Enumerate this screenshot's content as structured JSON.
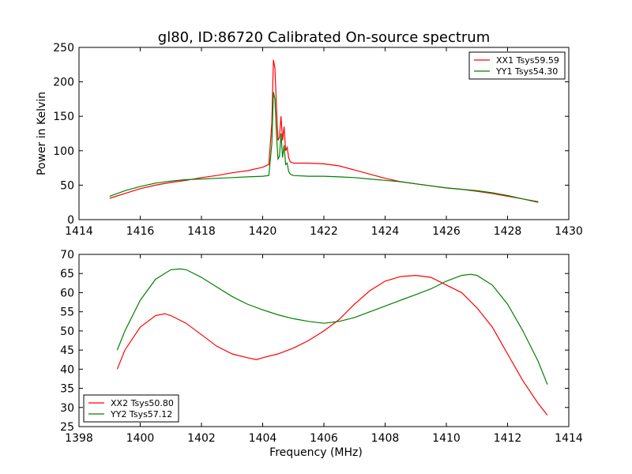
{
  "title": "gl80, ID:86720 Calibrated On-source spectrum",
  "chart_data": [
    {
      "type": "line",
      "title": "gl80, ID:86720 Calibrated On-source spectrum",
      "xlabel": "",
      "ylabel": "Power in Kelvin",
      "xlim": [
        1414,
        1430
      ],
      "ylim": [
        0,
        250
      ],
      "xticks": [
        1414,
        1416,
        1418,
        1420,
        1422,
        1424,
        1426,
        1428,
        1430
      ],
      "yticks": [
        0,
        50,
        100,
        150,
        200,
        250
      ],
      "grid": false,
      "legend_position": "top-right",
      "series": [
        {
          "name": "XX1 Tsys59.59",
          "color": "#ff0000",
          "x": [
            1415.0,
            1415.5,
            1416.0,
            1416.5,
            1417.0,
            1417.5,
            1418.0,
            1418.5,
            1419.0,
            1419.5,
            1420.0,
            1420.2,
            1420.3,
            1420.35,
            1420.4,
            1420.45,
            1420.5,
            1420.55,
            1420.6,
            1420.65,
            1420.7,
            1420.75,
            1420.8,
            1420.85,
            1420.9,
            1421.0,
            1421.5,
            1422.0,
            1422.5,
            1423.0,
            1423.5,
            1424.0,
            1424.5,
            1425.0,
            1425.5,
            1426.0,
            1426.5,
            1427.0,
            1427.5,
            1428.0,
            1428.5,
            1429.0
          ],
          "y": [
            31,
            38,
            45,
            50,
            54,
            57,
            61,
            64,
            68,
            71,
            76,
            80,
            140,
            232,
            220,
            165,
            115,
            120,
            150,
            115,
            135,
            100,
            105,
            90,
            84,
            82,
            82,
            81,
            78,
            72,
            66,
            60,
            55,
            52,
            49,
            46,
            44,
            41,
            38,
            34,
            30,
            26
          ]
        },
        {
          "name": "YY1 Tsys54.30",
          "color": "#008000",
          "x": [
            1415.0,
            1415.5,
            1416.0,
            1416.5,
            1417.0,
            1417.5,
            1418.0,
            1418.5,
            1419.0,
            1419.5,
            1420.0,
            1420.2,
            1420.3,
            1420.35,
            1420.4,
            1420.45,
            1420.5,
            1420.55,
            1420.6,
            1420.65,
            1420.7,
            1420.75,
            1420.8,
            1420.85,
            1420.9,
            1421.0,
            1421.5,
            1422.0,
            1422.5,
            1423.0,
            1423.5,
            1424.0,
            1424.5,
            1425.0,
            1425.5,
            1426.0,
            1426.5,
            1427.0,
            1427.5,
            1428.0,
            1428.5,
            1429.0
          ],
          "y": [
            34,
            42,
            48,
            53,
            56,
            58,
            59,
            60,
            61,
            62,
            63,
            64,
            110,
            185,
            175,
            125,
            88,
            92,
            125,
            90,
            108,
            80,
            82,
            70,
            66,
            64,
            63,
            63,
            62,
            61,
            59,
            57,
            55,
            52,
            49,
            46,
            44,
            42,
            39,
            35,
            30,
            25
          ]
        }
      ]
    },
    {
      "type": "line",
      "title": "",
      "xlabel": "Frequency (MHz)",
      "ylabel": "",
      "xlim": [
        1398,
        1414
      ],
      "ylim": [
        25,
        70
      ],
      "xticks": [
        1398,
        1400,
        1402,
        1404,
        1406,
        1408,
        1410,
        1412,
        1414
      ],
      "yticks": [
        25,
        30,
        35,
        40,
        45,
        50,
        55,
        60,
        65,
        70
      ],
      "grid": false,
      "legend_position": "bottom-left",
      "series": [
        {
          "name": "XX2 Tsys50.80",
          "color": "#ff0000",
          "x": [
            1399.25,
            1399.5,
            1400.0,
            1400.5,
            1400.8,
            1401.0,
            1401.5,
            1402.0,
            1402.5,
            1403.0,
            1403.5,
            1403.8,
            1404.0,
            1404.5,
            1405.0,
            1405.5,
            1406.0,
            1406.5,
            1407.0,
            1407.5,
            1408.0,
            1408.5,
            1409.0,
            1409.5,
            1410.0,
            1410.5,
            1411.0,
            1411.5,
            1412.0,
            1412.5,
            1413.0,
            1413.3
          ],
          "y": [
            40,
            45,
            51,
            54,
            54.5,
            54,
            52,
            49,
            46,
            44,
            43,
            42.5,
            43,
            44,
            45.5,
            47.5,
            50,
            53,
            57,
            60.5,
            63,
            64.2,
            64.5,
            64,
            62,
            60,
            56,
            51,
            44,
            37,
            31,
            28
          ]
        },
        {
          "name": "YY2 Tsys57.12",
          "color": "#008000",
          "x": [
            1399.25,
            1399.5,
            1400.0,
            1400.5,
            1401.0,
            1401.3,
            1401.5,
            1402.0,
            1402.5,
            1403.0,
            1403.5,
            1404.0,
            1404.5,
            1405.0,
            1405.5,
            1406.0,
            1406.5,
            1407.0,
            1407.5,
            1408.0,
            1408.5,
            1409.0,
            1409.5,
            1410.0,
            1410.5,
            1410.8,
            1411.0,
            1411.5,
            1412.0,
            1412.5,
            1413.0,
            1413.3
          ],
          "y": [
            45,
            50,
            58,
            63.5,
            66,
            66.2,
            66,
            64,
            61.5,
            59,
            57,
            55.5,
            54.2,
            53.2,
            52.5,
            52,
            52.5,
            53.5,
            55,
            56.5,
            58,
            59.5,
            61,
            63,
            64.5,
            64.8,
            64.5,
            62,
            57,
            50,
            42,
            36
          ]
        }
      ]
    }
  ]
}
